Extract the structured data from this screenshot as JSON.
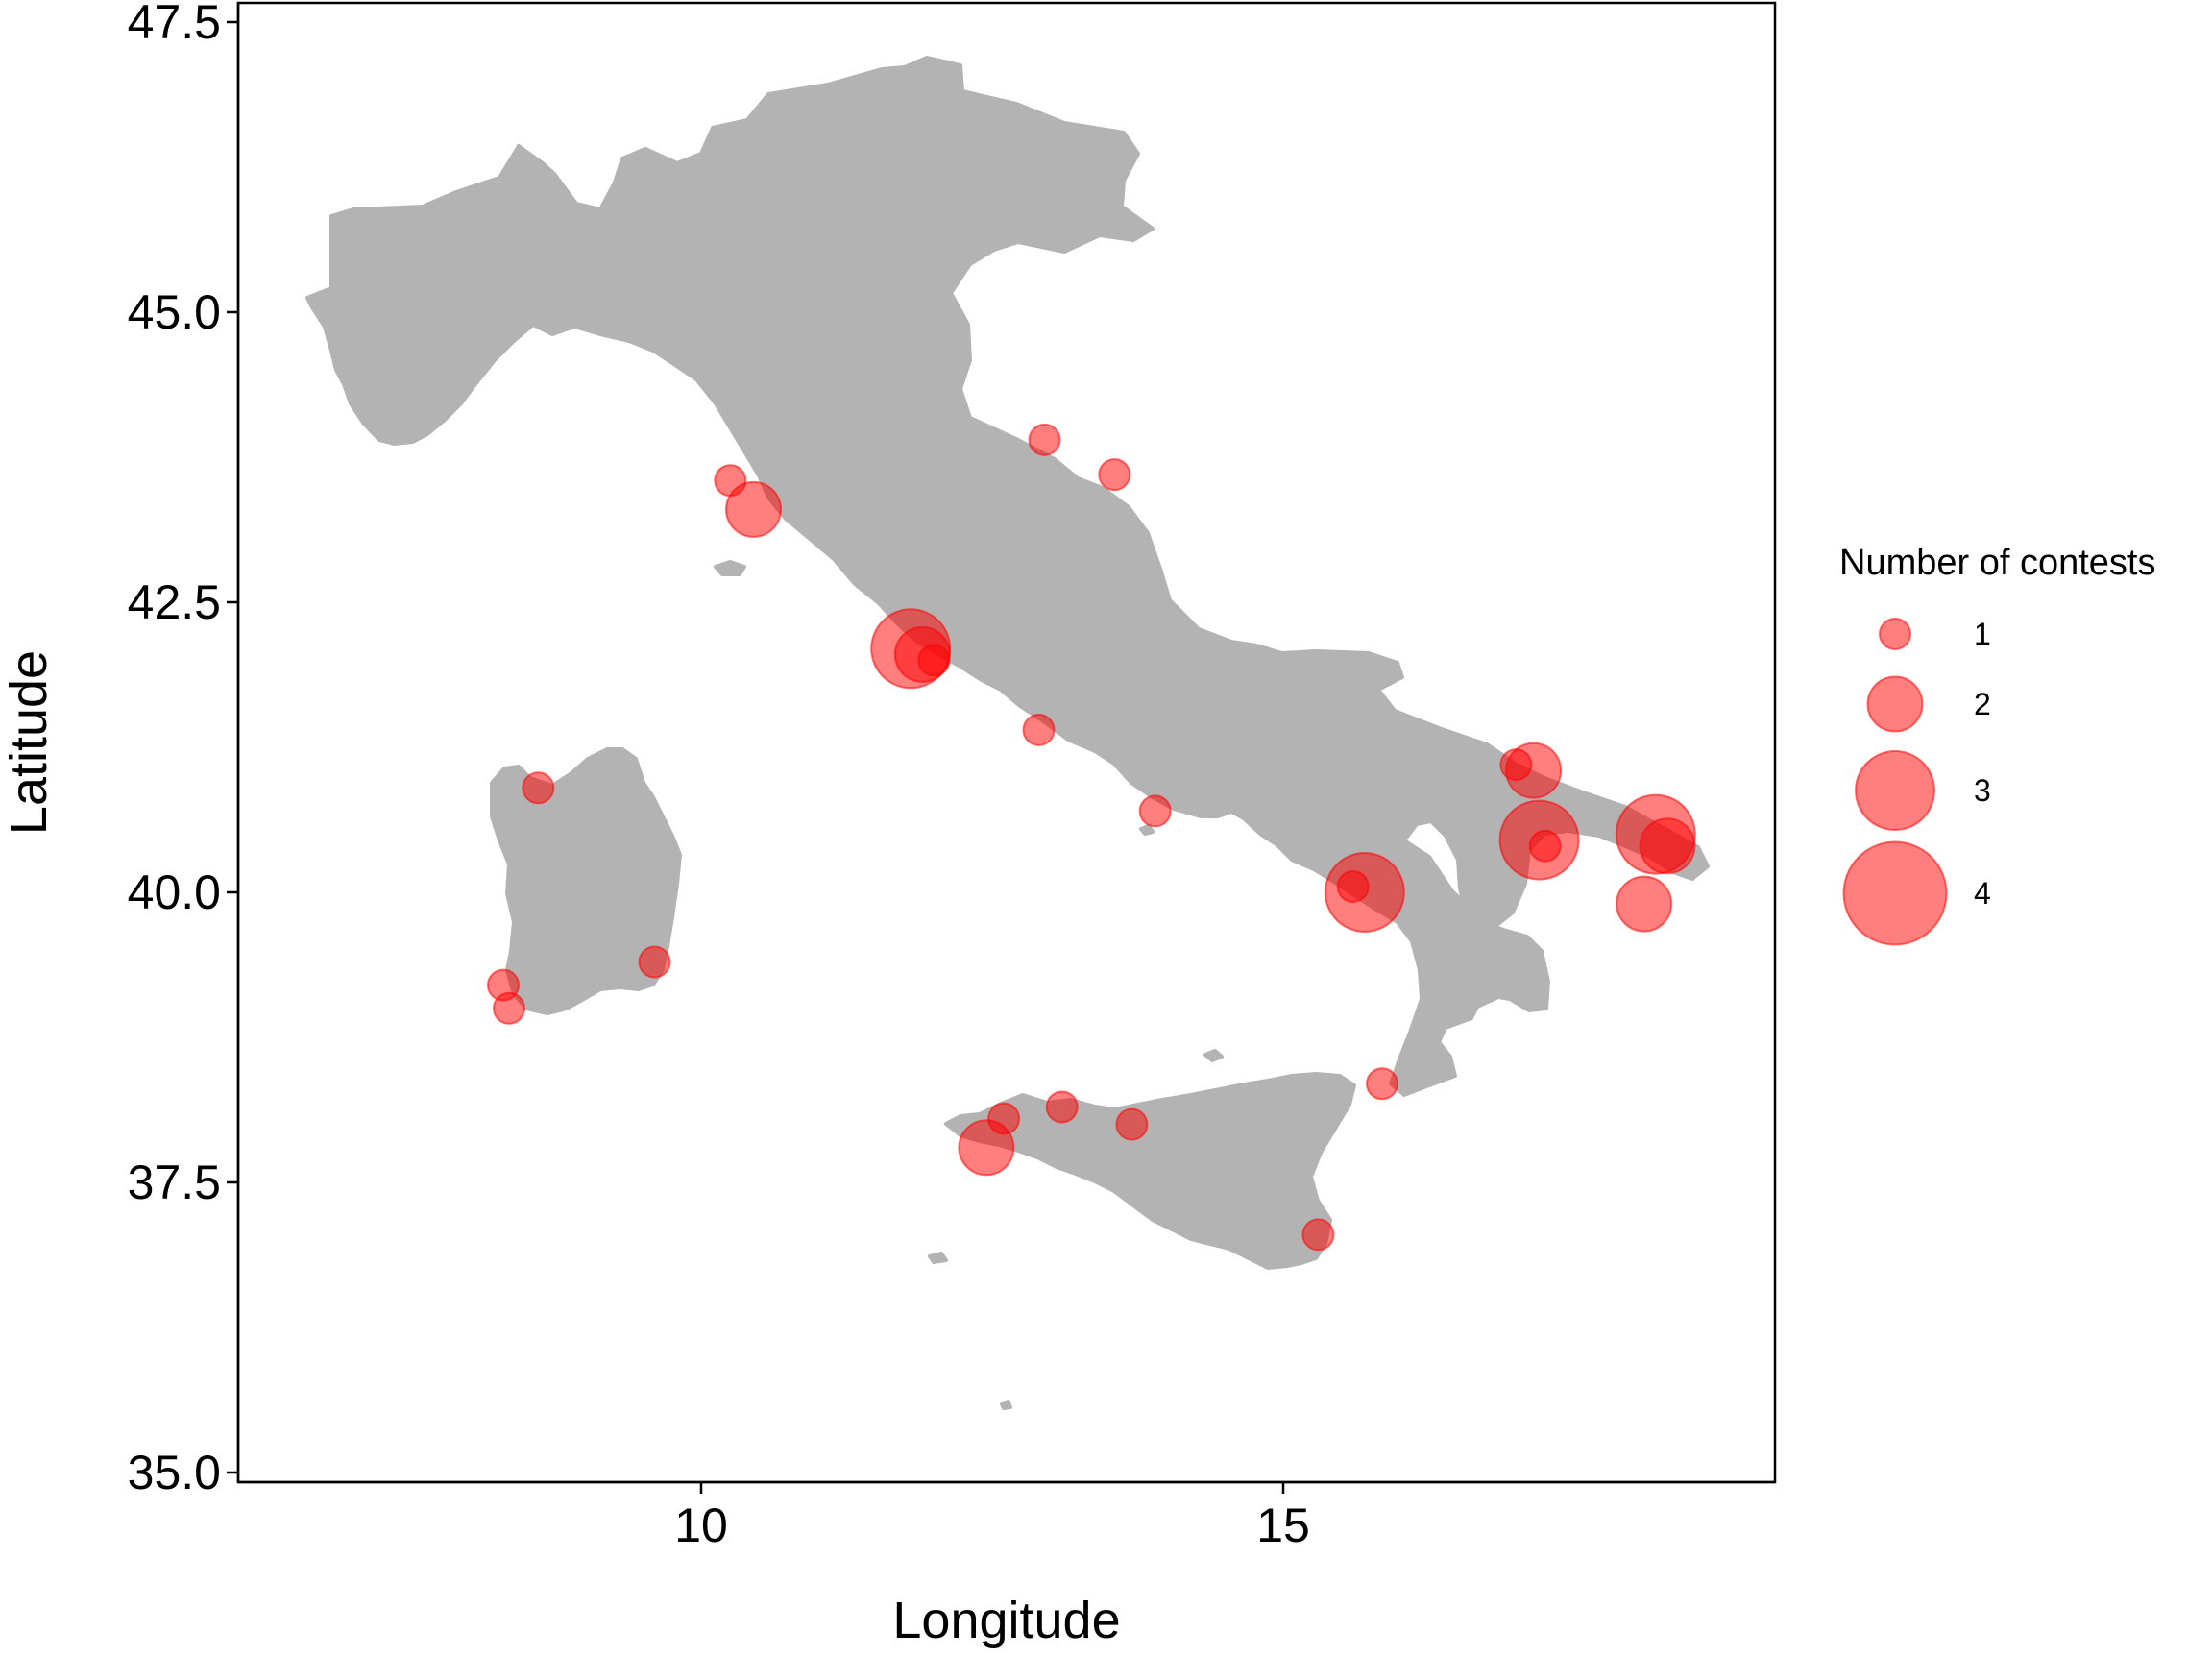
{
  "chart_data": {
    "type": "scatter",
    "subtype": "bubble-map",
    "xlabel": "Longitude",
    "ylabel": "Latitude",
    "xlim": [
      6.1,
      19.3
    ],
    "ylim": [
      35.0,
      47.6
    ],
    "xticks": [
      10,
      15
    ],
    "yticks": [
      35.0,
      37.5,
      40.0,
      42.5,
      45.0,
      47.5
    ],
    "xtick_labels": [
      "10",
      "15"
    ],
    "ytick_labels": [
      "35.0",
      "37.5",
      "40.0",
      "42.5",
      "45.0",
      "47.5"
    ],
    "grid": false,
    "background_land_color": "#b3b3b3",
    "point_color": "#ff0000",
    "point_opacity": 0.5,
    "legend": {
      "title": "Number of contests",
      "placement": "right",
      "entries": [
        {
          "label": "1",
          "value": 1
        },
        {
          "label": "2",
          "value": 2
        },
        {
          "label": "3",
          "value": 3
        },
        {
          "label": "4",
          "value": 4
        }
      ]
    },
    "points": [
      {
        "lon": 12.95,
        "lat": 43.9,
        "contests": 1
      },
      {
        "lon": 13.55,
        "lat": 43.6,
        "contests": 1
      },
      {
        "lon": 10.25,
        "lat": 43.55,
        "contests": 1
      },
      {
        "lon": 10.45,
        "lat": 43.3,
        "contests": 2
      },
      {
        "lon": 11.8,
        "lat": 42.1,
        "contests": 3
      },
      {
        "lon": 11.9,
        "lat": 42.05,
        "contests": 2
      },
      {
        "lon": 12.0,
        "lat": 42.0,
        "contests": 1
      },
      {
        "lon": 12.9,
        "lat": 41.4,
        "contests": 1
      },
      {
        "lon": 13.9,
        "lat": 40.7,
        "contests": 1
      },
      {
        "lon": 8.6,
        "lat": 40.9,
        "contests": 1
      },
      {
        "lon": 9.6,
        "lat": 39.4,
        "contests": 1
      },
      {
        "lon": 8.3,
        "lat": 39.2,
        "contests": 1
      },
      {
        "lon": 8.35,
        "lat": 39.0,
        "contests": 1
      },
      {
        "lon": 17.0,
        "lat": 41.1,
        "contests": 1
      },
      {
        "lon": 17.15,
        "lat": 41.05,
        "contests": 2
      },
      {
        "lon": 17.2,
        "lat": 40.45,
        "contests": 3
      },
      {
        "lon": 17.25,
        "lat": 40.4,
        "contests": 1
      },
      {
        "lon": 18.2,
        "lat": 40.5,
        "contests": 3
      },
      {
        "lon": 18.3,
        "lat": 40.4,
        "contests": 2
      },
      {
        "lon": 18.1,
        "lat": 39.9,
        "contests": 2
      },
      {
        "lon": 15.7,
        "lat": 40.0,
        "contests": 3
      },
      {
        "lon": 15.6,
        "lat": 40.05,
        "contests": 1
      },
      {
        "lon": 15.85,
        "lat": 38.35,
        "contests": 1
      },
      {
        "lon": 12.6,
        "lat": 38.05,
        "contests": 1
      },
      {
        "lon": 12.45,
        "lat": 37.8,
        "contests": 2
      },
      {
        "lon": 13.1,
        "lat": 38.15,
        "contests": 1
      },
      {
        "lon": 13.7,
        "lat": 38.0,
        "contests": 1
      },
      {
        "lon": 15.3,
        "lat": 37.05,
        "contests": 1
      }
    ]
  }
}
